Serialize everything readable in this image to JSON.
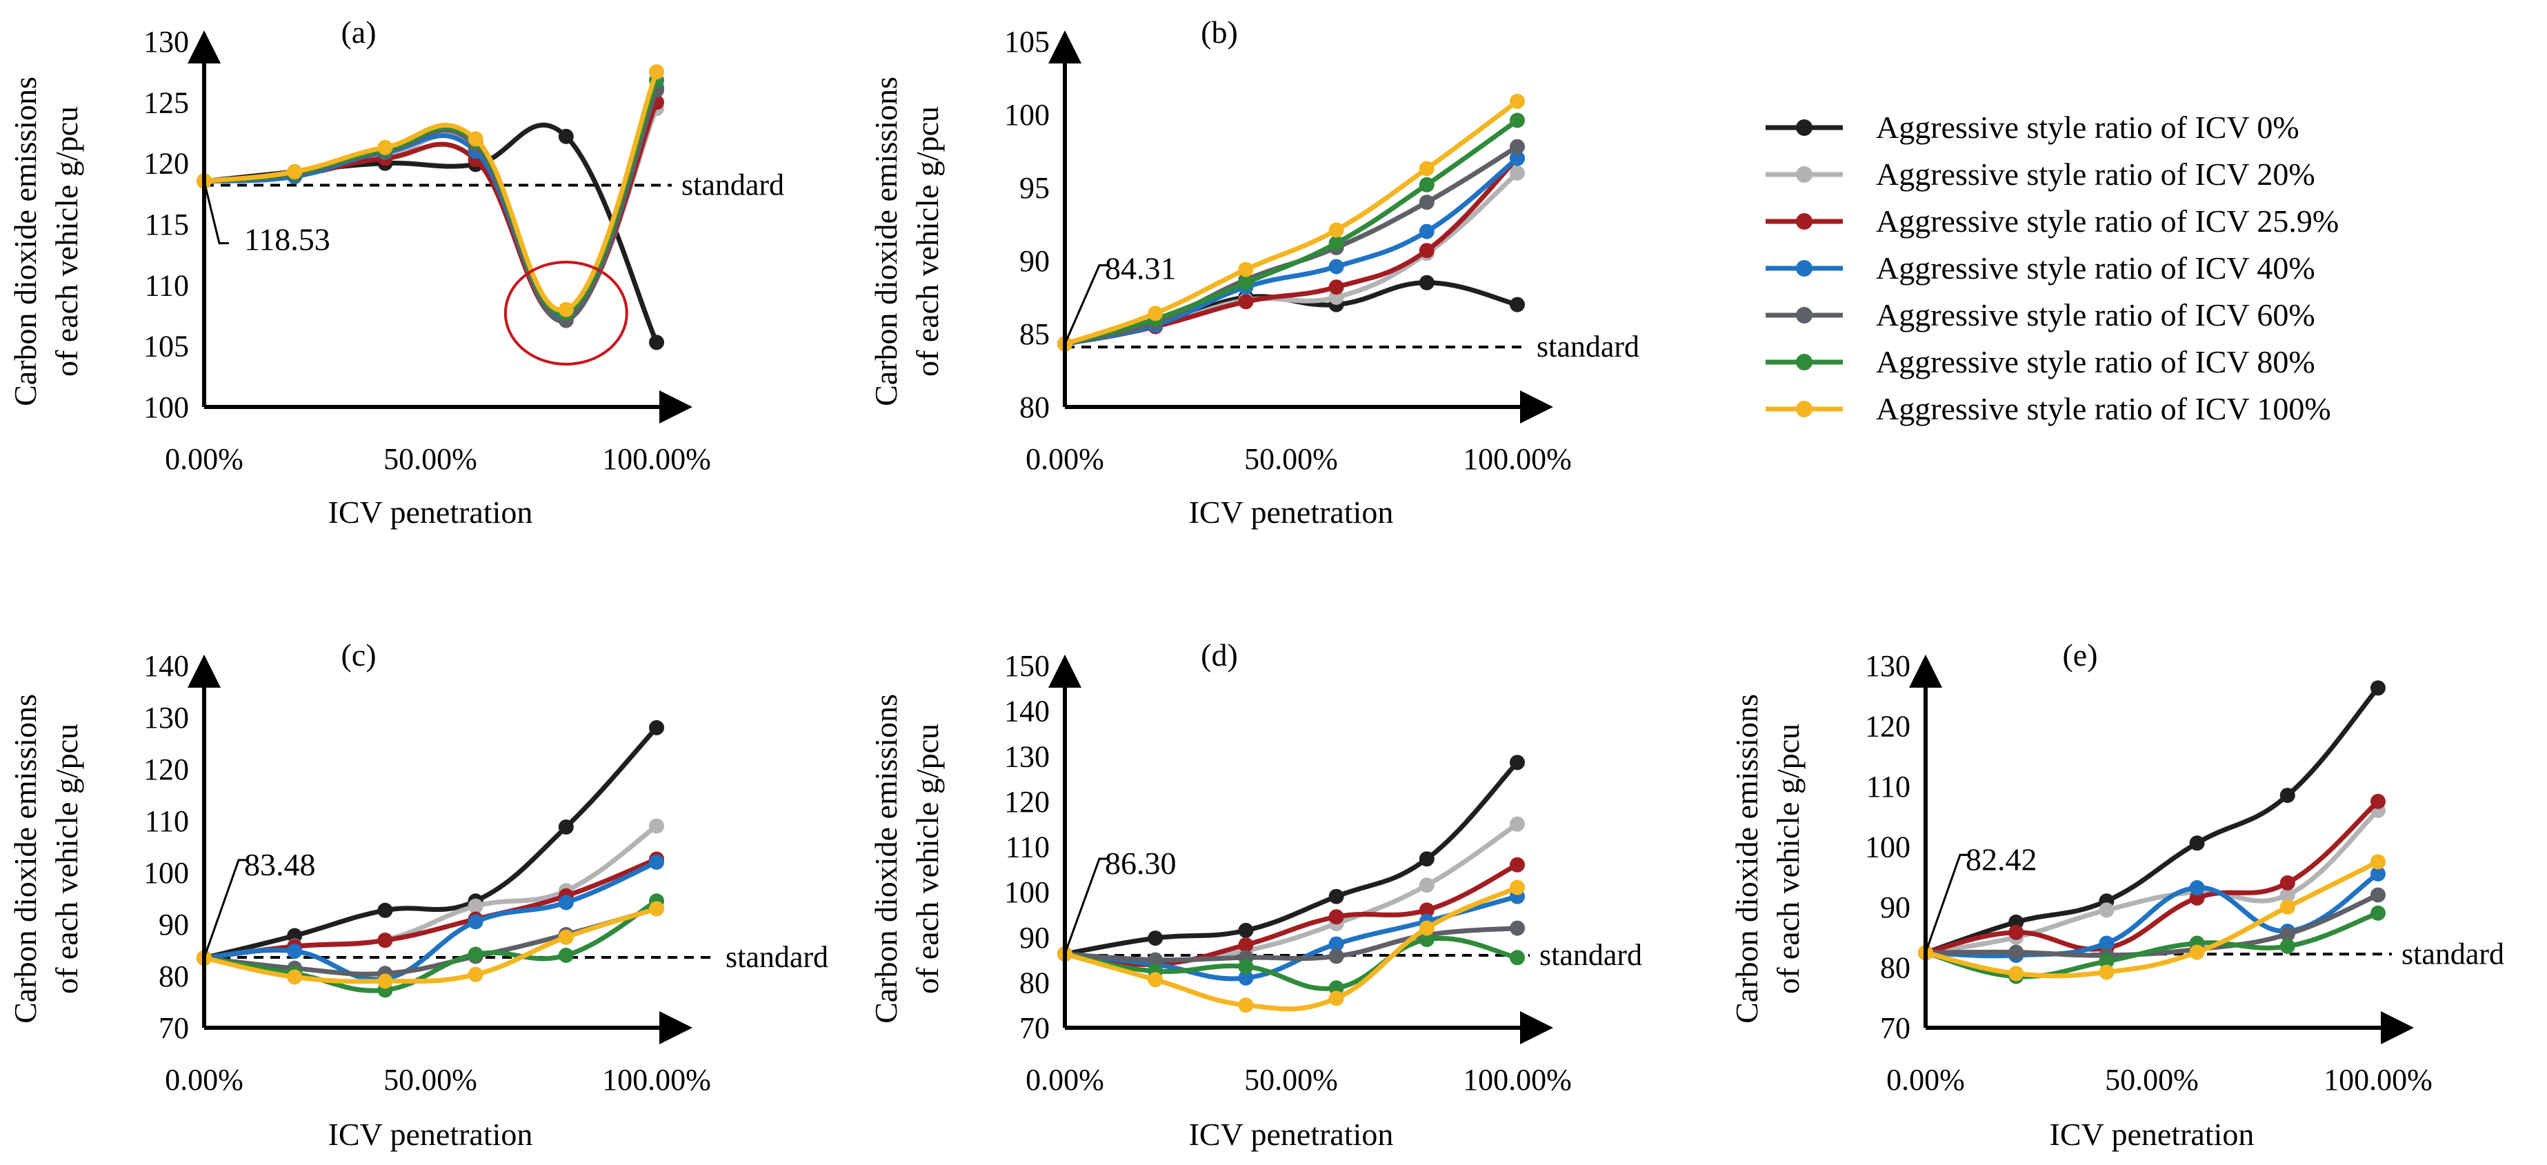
{
  "legend": {
    "entries": [
      {
        "label": "Aggressive style ratio of ICV 0%",
        "color": "#1f1f1f"
      },
      {
        "label": "Aggressive style ratio of ICV 20%",
        "color": "#b3b3b6"
      },
      {
        "label": "Aggressive style ratio of ICV 25.9%",
        "color": "#a21d22"
      },
      {
        "label": "Aggressive style ratio of ICV 40%",
        "color": "#1f73c2"
      },
      {
        "label": "Aggressive style ratio of ICV 60%",
        "color": "#5e6067"
      },
      {
        "label": "Aggressive style ratio of ICV 80%",
        "color": "#2f8a3b"
      },
      {
        "label": "Aggressive style ratio of ICV 100%",
        "color": "#f5b521"
      }
    ]
  },
  "chart_data": [
    {
      "panel": "(a)",
      "type": "line",
      "x": [
        0,
        20,
        40,
        60,
        80,
        100
      ],
      "x_tick_labels": [
        "0.00%",
        "50.00%",
        "100.00%"
      ],
      "x_tick_values": [
        0,
        50,
        100
      ],
      "xlabel": "ICV penetration",
      "ylabel_lines": [
        "Carbon dioxide emissions",
        "of each vehicle g/pcu"
      ],
      "ylim": [
        100,
        130
      ],
      "y_ticks": [
        100,
        105,
        110,
        115,
        120,
        125,
        130
      ],
      "standard": 118.2,
      "standard_label": "standard",
      "callout": "118.53",
      "highlight_circle_at": [
        80,
        107.7
      ],
      "series": [
        {
          "name": "Aggressive style ratio of ICV 0%",
          "values": [
            118.53,
            119.3,
            120.0,
            119.9,
            122.2,
            105.3
          ]
        },
        {
          "name": "Aggressive style ratio of ICV 20%",
          "values": [
            118.53,
            119.0,
            120.6,
            121.2,
            107.5,
            124.5
          ]
        },
        {
          "name": "Aggressive style ratio of ICV 25.9%",
          "values": [
            118.53,
            119.0,
            120.4,
            120.3,
            107.2,
            125.0
          ]
        },
        {
          "name": "Aggressive style ratio of ICV 40%",
          "values": [
            118.53,
            118.9,
            120.9,
            121.0,
            107.4,
            126.2
          ]
        },
        {
          "name": "Aggressive style ratio of ICV 60%",
          "values": [
            118.53,
            119.1,
            121.0,
            121.5,
            107.1,
            126.0
          ]
        },
        {
          "name": "Aggressive style ratio of ICV 80%",
          "values": [
            118.53,
            119.2,
            121.1,
            121.8,
            107.7,
            126.8
          ]
        },
        {
          "name": "Aggressive style ratio of ICV 100%",
          "values": [
            118.53,
            119.3,
            121.3,
            122.0,
            108.0,
            127.5
          ]
        }
      ]
    },
    {
      "panel": "(b)",
      "type": "line",
      "x": [
        0,
        20,
        40,
        60,
        80,
        100
      ],
      "x_tick_labels": [
        "0.00%",
        "50.00%",
        "100.00%"
      ],
      "x_tick_values": [
        0,
        50,
        100
      ],
      "xlabel": "ICV penetration",
      "ylabel_lines": [
        "Carbon dioxide emissions",
        "of each vehicle g/pcu"
      ],
      "ylim": [
        80,
        105
      ],
      "y_ticks": [
        80,
        85,
        90,
        95,
        100,
        105
      ],
      "standard": 84.1,
      "standard_label": "standard",
      "callout": "84.31",
      "series": [
        {
          "name": "Aggressive style ratio of ICV 0%",
          "values": [
            84.31,
            85.5,
            87.5,
            87.0,
            88.5,
            87.0
          ]
        },
        {
          "name": "Aggressive style ratio of ICV 20%",
          "values": [
            84.31,
            85.5,
            87.3,
            87.5,
            90.5,
            96.0
          ]
        },
        {
          "name": "Aggressive style ratio of ICV 25.9%",
          "values": [
            84.31,
            85.5,
            87.2,
            88.2,
            90.7,
            97.0
          ]
        },
        {
          "name": "Aggressive style ratio of ICV 40%",
          "values": [
            84.31,
            85.6,
            88.2,
            89.6,
            92.0,
            97.0
          ]
        },
        {
          "name": "Aggressive style ratio of ICV 60%",
          "values": [
            84.31,
            85.8,
            88.7,
            90.9,
            94.0,
            97.8
          ]
        },
        {
          "name": "Aggressive style ratio of ICV 80%",
          "values": [
            84.31,
            86.0,
            88.5,
            91.2,
            95.2,
            99.6
          ]
        },
        {
          "name": "Aggressive style ratio of ICV 100%",
          "values": [
            84.31,
            86.4,
            89.4,
            92.1,
            96.3,
            100.9
          ]
        }
      ]
    },
    {
      "panel": "(c)",
      "type": "line",
      "x": [
        0,
        20,
        40,
        60,
        80,
        100
      ],
      "x_tick_labels": [
        "0.00%",
        "50.00%",
        "100.00%"
      ],
      "x_tick_values": [
        0,
        50,
        100
      ],
      "xlabel": "ICV penetration",
      "ylabel_lines": [
        "Carbon dioxide emissions",
        "of each vehicle g/pcu"
      ],
      "ylim": [
        70,
        140
      ],
      "y_ticks": [
        70,
        80,
        90,
        100,
        110,
        120,
        130,
        140
      ],
      "standard": 83.6,
      "standard_label": "standard",
      "callout": "83.48",
      "series": [
        {
          "name": "Aggressive style ratio of ICV 0%",
          "values": [
            83.48,
            87.8,
            92.7,
            94.5,
            108.8,
            128.0
          ]
        },
        {
          "name": "Aggressive style ratio of ICV 20%",
          "values": [
            83.48,
            85.8,
            87.0,
            93.5,
            96.5,
            109.0
          ]
        },
        {
          "name": "Aggressive style ratio of ICV 25.9%",
          "values": [
            83.48,
            85.7,
            86.9,
            91.0,
            95.5,
            102.6
          ]
        },
        {
          "name": "Aggressive style ratio of ICV 40%",
          "values": [
            83.48,
            84.8,
            79.5,
            90.5,
            94.2,
            102.0
          ]
        },
        {
          "name": "Aggressive style ratio of ICV 60%",
          "values": [
            83.48,
            81.5,
            80.5,
            83.8,
            88.0,
            93.0
          ]
        },
        {
          "name": "Aggressive style ratio of ICV 80%",
          "values": [
            83.48,
            80.5,
            77.3,
            84.2,
            84.0,
            94.5
          ]
        },
        {
          "name": "Aggressive style ratio of ICV 100%",
          "values": [
            83.48,
            79.8,
            79.0,
            80.3,
            87.5,
            93.0
          ]
        }
      ]
    },
    {
      "panel": "(d)",
      "type": "line",
      "x": [
        0,
        20,
        40,
        60,
        80,
        100
      ],
      "x_tick_labels": [
        "0.00%",
        "50.00%",
        "100.00%"
      ],
      "x_tick_values": [
        0,
        50,
        100
      ],
      "xlabel": "ICV penetration",
      "ylabel_lines": [
        "Carbon dioxide emissions",
        "of each vehicle g/pcu"
      ],
      "ylim": [
        70,
        150
      ],
      "y_ticks": [
        70,
        80,
        90,
        100,
        110,
        120,
        130,
        140,
        150
      ],
      "standard": 86.0,
      "standard_label": "standard",
      "callout": "86.30",
      "series": [
        {
          "name": "Aggressive style ratio of ICV 0%",
          "values": [
            86.3,
            89.8,
            91.5,
            99.0,
            107.3,
            128.6
          ]
        },
        {
          "name": "Aggressive style ratio of ICV 20%",
          "values": [
            86.3,
            84.5,
            87.0,
            93.0,
            101.5,
            115.0
          ]
        },
        {
          "name": "Aggressive style ratio of ICV 25.9%",
          "values": [
            86.3,
            84.0,
            88.3,
            94.5,
            96.0,
            106.0
          ]
        },
        {
          "name": "Aggressive style ratio of ICV 40%",
          "values": [
            86.3,
            84.0,
            81.0,
            88.5,
            93.5,
            99.0
          ]
        },
        {
          "name": "Aggressive style ratio of ICV 60%",
          "values": [
            86.3,
            85.0,
            85.5,
            85.8,
            90.5,
            92.0
          ]
        },
        {
          "name": "Aggressive style ratio of ICV 80%",
          "values": [
            86.3,
            82.5,
            83.5,
            78.8,
            89.5,
            85.5
          ]
        },
        {
          "name": "Aggressive style ratio of ICV 100%",
          "values": [
            86.3,
            80.6,
            75.0,
            76.5,
            92.0,
            101.0
          ]
        }
      ]
    },
    {
      "panel": "(e)",
      "type": "line",
      "x": [
        0,
        20,
        40,
        60,
        80,
        100
      ],
      "x_tick_labels": [
        "0.00%",
        "50.00%",
        "100.00%"
      ],
      "x_tick_values": [
        0,
        50,
        100
      ],
      "xlabel": "ICV penetration",
      "ylabel_lines": [
        "Carbon dioxide emissions",
        "of each vehicle g/pcu"
      ],
      "ylim": [
        70,
        130
      ],
      "y_ticks": [
        70,
        80,
        90,
        100,
        110,
        120,
        130
      ],
      "standard": 82.2,
      "standard_label": "standard",
      "callout": "82.42",
      "series": [
        {
          "name": "Aggressive style ratio of ICV 0%",
          "values": [
            82.42,
            87.5,
            91.0,
            100.6,
            108.5,
            126.3
          ]
        },
        {
          "name": "Aggressive style ratio of ICV 20%",
          "values": [
            82.42,
            85.0,
            89.5,
            92.5,
            92.0,
            106.0
          ]
        },
        {
          "name": "Aggressive style ratio of ICV 25.9%",
          "values": [
            82.42,
            85.8,
            83.2,
            91.5,
            94.0,
            107.5
          ]
        },
        {
          "name": "Aggressive style ratio of ICV 40%",
          "values": [
            82.42,
            82.0,
            84.0,
            93.2,
            86.0,
            95.5
          ]
        },
        {
          "name": "Aggressive style ratio of ICV 60%",
          "values": [
            82.42,
            82.5,
            82.0,
            83.0,
            85.5,
            92.0
          ]
        },
        {
          "name": "Aggressive style ratio of ICV 80%",
          "values": [
            82.42,
            78.5,
            81.0,
            84.0,
            83.5,
            89.0
          ]
        },
        {
          "name": "Aggressive style ratio of ICV 100%",
          "values": [
            82.42,
            79.0,
            79.2,
            82.5,
            90.0,
            97.5
          ]
        }
      ]
    }
  ]
}
